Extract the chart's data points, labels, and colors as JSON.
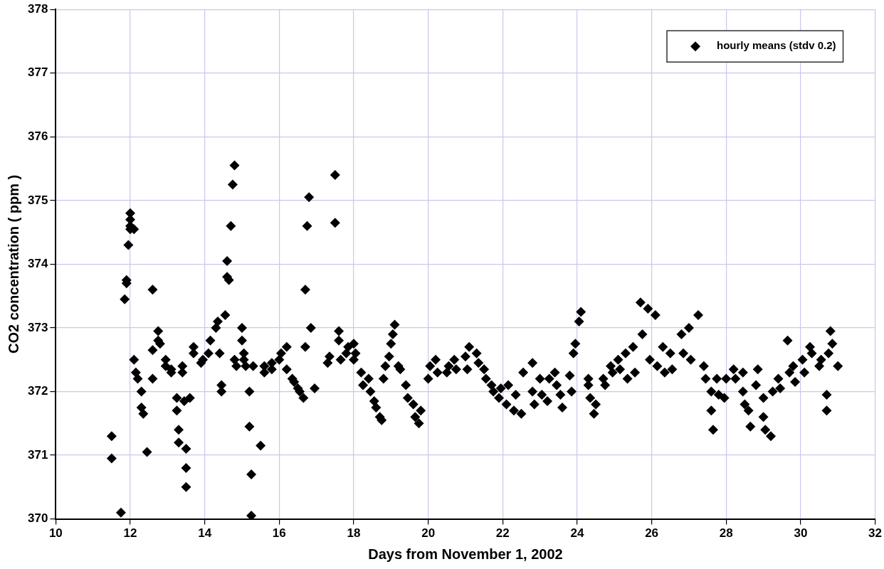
{
  "chart_data": {
    "type": "scatter",
    "xlabel": "Days from November 1, 2002",
    "ylabel": "CO2 concentration ( ppm )",
    "xlim": [
      10,
      32
    ],
    "xticks": [
      10,
      12,
      14,
      16,
      18,
      20,
      22,
      24,
      26,
      28,
      30,
      32
    ],
    "ylim": [
      370,
      378
    ],
    "yticks": [
      370,
      371,
      372,
      373,
      374,
      375,
      376,
      377,
      378
    ],
    "grid": true,
    "legend": "top right",
    "marker": "diamond",
    "series": [
      {
        "name": "hourly means (stdv 0.2)",
        "color": "#000000",
        "x": [
          11.5,
          11.5,
          11.75,
          11.85,
          11.9,
          11.9,
          11.95,
          12.0,
          12.0,
          12.0,
          12.0,
          12.1,
          12.1,
          12.15,
          12.2,
          12.3,
          12.3,
          12.35,
          12.45,
          12.6,
          12.6,
          12.6,
          12.75,
          12.75,
          12.8,
          12.95,
          12.95,
          13.1,
          13.1,
          13.25,
          13.25,
          13.3,
          13.3,
          13.4,
          13.4,
          13.45,
          13.5,
          13.5,
          13.5,
          13.6,
          13.7,
          13.7,
          13.9,
          13.95,
          14.1,
          14.15,
          14.3,
          14.35,
          14.4,
          14.45,
          14.45,
          14.55,
          14.6,
          14.6,
          14.65,
          14.7,
          14.75,
          14.8,
          14.8,
          14.85,
          15.0,
          15.0,
          15.05,
          15.05,
          15.1,
          15.2,
          15.2,
          15.25,
          15.25,
          15.3,
          15.5,
          15.6,
          15.6,
          15.8,
          15.8,
          16.0,
          16.05,
          16.2,
          16.2,
          16.35,
          16.4,
          16.5,
          16.55,
          16.65,
          16.7,
          16.7,
          16.75,
          16.8,
          16.85,
          16.95,
          17.3,
          17.35,
          17.5,
          17.5,
          17.6,
          17.6,
          17.65,
          17.8,
          17.85,
          18.0,
          18.0,
          18.05,
          18.2,
          18.25,
          18.4,
          18.45,
          18.55,
          18.6,
          18.7,
          18.75,
          18.8,
          18.85,
          18.95,
          19.0,
          19.05,
          19.1,
          19.2,
          19.25,
          19.4,
          19.45,
          19.6,
          19.65,
          19.75,
          19.8,
          20.0,
          20.05,
          20.2,
          20.25,
          20.5,
          20.55,
          20.7,
          20.75,
          21.0,
          21.05,
          21.1,
          21.3,
          21.35,
          21.5,
          21.55,
          21.7,
          21.75,
          21.9,
          21.95,
          22.1,
          22.15,
          22.3,
          22.35,
          22.5,
          22.55,
          22.8,
          22.8,
          22.85,
          23.0,
          23.05,
          23.2,
          23.25,
          23.4,
          23.45,
          23.55,
          23.6,
          23.8,
          23.85,
          23.9,
          23.95,
          24.05,
          24.1,
          24.3,
          24.3,
          24.35,
          24.45,
          24.5,
          24.7,
          24.75,
          24.9,
          24.95,
          25.1,
          25.15,
          25.3,
          25.35,
          25.5,
          25.55,
          25.7,
          25.75,
          25.9,
          25.95,
          26.1,
          26.15,
          26.3,
          26.35,
          26.5,
          26.55,
          26.8,
          26.85,
          27.0,
          27.05,
          27.25,
          27.4,
          27.45,
          27.6,
          27.6,
          27.65,
          27.75,
          27.8,
          27.95,
          28.0,
          28.2,
          28.25,
          28.45,
          28.45,
          28.5,
          28.6,
          28.65,
          28.8,
          28.85,
          29.0,
          29.0,
          29.05,
          29.2,
          29.25,
          29.4,
          29.45,
          29.65,
          29.7,
          29.8,
          29.85,
          30.05,
          30.1,
          30.25,
          30.3,
          30.5,
          30.55,
          30.7,
          30.7,
          30.75,
          30.8,
          30.85,
          31.0
        ],
        "values": [
          371.3,
          370.95,
          370.1,
          373.45,
          373.7,
          373.75,
          374.3,
          374.55,
          374.6,
          374.7,
          374.8,
          374.55,
          372.5,
          372.3,
          372.2,
          372.0,
          371.75,
          371.65,
          371.05,
          373.6,
          372.65,
          372.2,
          372.8,
          372.95,
          372.75,
          372.5,
          372.4,
          372.35,
          372.3,
          371.9,
          371.7,
          371.4,
          371.2,
          372.4,
          372.3,
          371.85,
          371.1,
          370.8,
          370.5,
          371.9,
          372.7,
          372.6,
          372.45,
          372.5,
          372.6,
          372.8,
          373.0,
          373.1,
          372.6,
          372.1,
          372.0,
          373.2,
          374.05,
          373.8,
          373.75,
          374.6,
          375.25,
          375.55,
          372.5,
          372.4,
          373.0,
          372.8,
          372.6,
          372.5,
          372.4,
          372.0,
          371.45,
          370.7,
          370.05,
          372.4,
          371.15,
          372.4,
          372.3,
          372.45,
          372.35,
          372.5,
          372.6,
          372.7,
          372.35,
          372.2,
          372.15,
          372.05,
          372.0,
          371.9,
          372.7,
          373.6,
          374.6,
          375.05,
          373.0,
          372.05,
          372.45,
          372.55,
          375.4,
          374.65,
          372.95,
          372.8,
          372.5,
          372.6,
          372.7,
          372.75,
          372.5,
          372.6,
          372.3,
          372.1,
          372.2,
          372.0,
          371.85,
          371.75,
          371.6,
          371.55,
          372.2,
          372.4,
          372.55,
          372.75,
          372.9,
          373.05,
          372.4,
          372.35,
          372.1,
          371.9,
          371.8,
          371.6,
          371.5,
          371.7,
          372.2,
          372.4,
          372.5,
          372.3,
          372.3,
          372.4,
          372.5,
          372.35,
          372.55,
          372.35,
          372.7,
          372.6,
          372.45,
          372.35,
          372.2,
          372.1,
          372.0,
          371.9,
          372.05,
          371.8,
          372.1,
          371.7,
          371.95,
          371.65,
          372.3,
          372.45,
          372.0,
          371.8,
          372.2,
          371.95,
          371.85,
          372.2,
          372.3,
          372.1,
          371.95,
          371.75,
          372.25,
          372.0,
          372.6,
          372.75,
          373.1,
          373.25,
          372.2,
          372.1,
          371.9,
          371.65,
          371.8,
          372.2,
          372.1,
          372.4,
          372.3,
          372.5,
          372.35,
          372.6,
          372.2,
          372.7,
          372.3,
          373.4,
          372.9,
          373.3,
          372.5,
          373.2,
          372.4,
          372.7,
          372.3,
          372.6,
          372.35,
          372.9,
          372.6,
          373.0,
          372.5,
          373.2,
          372.4,
          372.2,
          372.0,
          371.7,
          371.4,
          372.2,
          371.95,
          371.9,
          372.2,
          372.35,
          372.2,
          372.3,
          372.0,
          371.8,
          371.7,
          371.45,
          372.1,
          372.35,
          371.9,
          371.6,
          371.4,
          371.3,
          372.0,
          372.2,
          372.05,
          372.8,
          372.3,
          372.4,
          372.15,
          372.5,
          372.3,
          372.7,
          372.6,
          372.4,
          372.5,
          371.95,
          371.7,
          372.6,
          372.95,
          372.75,
          372.4
        ]
      }
    ]
  }
}
